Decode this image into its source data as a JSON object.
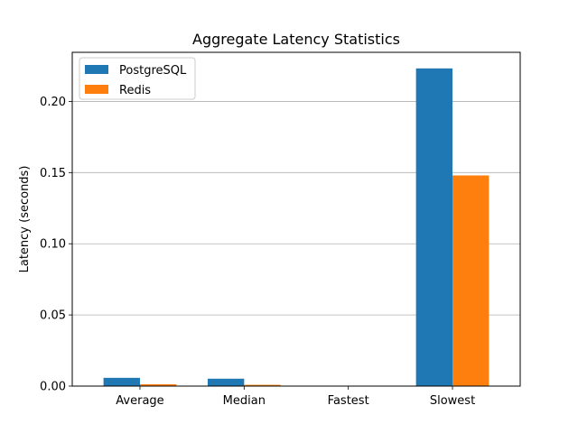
{
  "chart_data": {
    "type": "bar",
    "title": "Aggregate Latency Statistics",
    "xlabel": "",
    "ylabel": "Latency (seconds)",
    "categories": [
      "Average",
      "Median",
      "Fastest",
      "Slowest"
    ],
    "series": [
      {
        "name": "PostgreSQL",
        "color": "#1f77b4",
        "values": [
          0.0058,
          0.0052,
          0.0001,
          0.2232
        ]
      },
      {
        "name": "Redis",
        "color": "#ff7f0e",
        "values": [
          0.0013,
          0.0009,
          5e-05,
          0.148
        ]
      }
    ],
    "ylim": [
      0,
      0.2345
    ],
    "yticks": [
      "0.00",
      "0.05",
      "0.10",
      "0.15",
      "0.20"
    ],
    "grid": "y",
    "legend_position": "top-left"
  }
}
